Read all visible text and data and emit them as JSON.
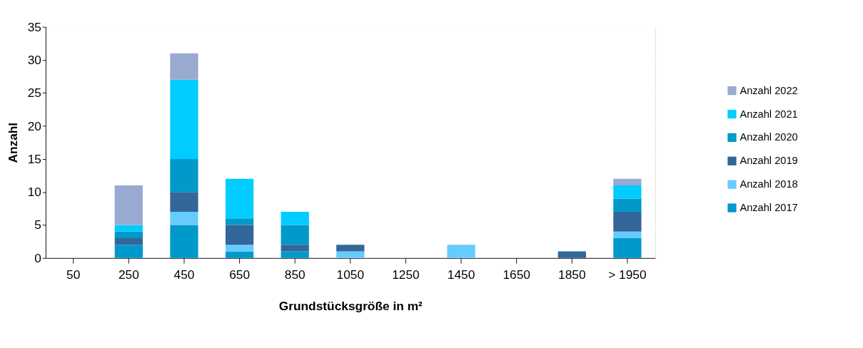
{
  "chart_data": {
    "type": "bar",
    "stacked": true,
    "xlabel": "Grundstücksgröße in m²",
    "ylabel": "Anzahl",
    "categories": [
      "50",
      "250",
      "450",
      "650",
      "850",
      "1050",
      "1250",
      "1450",
      "1650",
      "1850",
      "> 1950"
    ],
    "series": [
      {
        "name": "Anzahl 2017",
        "color": "#0099cc",
        "values": [
          0,
          2,
          5,
          1,
          1,
          0,
          0,
          0,
          0,
          0,
          3
        ]
      },
      {
        "name": "Anzahl 2018",
        "color": "#66ccff",
        "values": [
          0,
          0,
          2,
          1,
          0,
          1,
          0,
          2,
          0,
          0,
          1
        ]
      },
      {
        "name": "Anzahl 2019",
        "color": "#336699",
        "values": [
          0,
          1,
          3,
          3,
          1,
          1,
          0,
          0,
          0,
          1,
          3
        ]
      },
      {
        "name": "Anzahl 2020",
        "color": "#0198ca",
        "values": [
          0,
          1,
          5,
          1,
          3,
          0,
          0,
          0,
          0,
          0,
          2
        ]
      },
      {
        "name": "Anzahl 2021",
        "color": "#00ccff",
        "values": [
          0,
          1,
          12,
          6,
          2,
          0,
          0,
          0,
          0,
          0,
          2
        ]
      },
      {
        "name": "Anzahl 2022",
        "color": "#99aad0",
        "values": [
          0,
          6,
          4,
          0,
          0,
          0,
          0,
          0,
          0,
          0,
          1
        ]
      }
    ],
    "ylim": [
      0,
      35
    ],
    "yticks": [
      0,
      5,
      10,
      15,
      20,
      25,
      30,
      35
    ],
    "grid": "y",
    "legend": "right"
  }
}
